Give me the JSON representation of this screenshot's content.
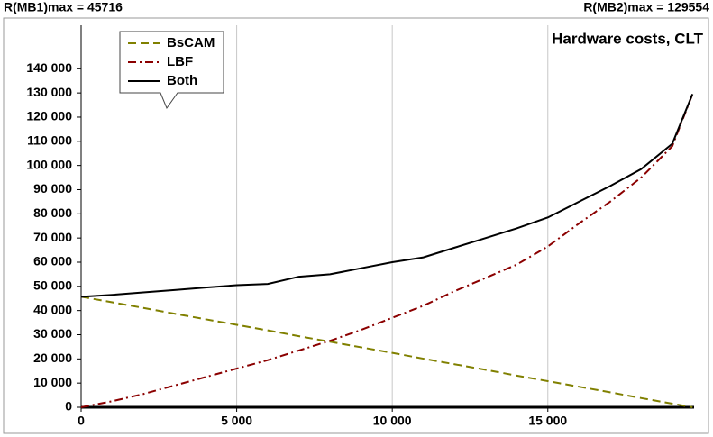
{
  "header": {
    "left": "R(MB1)max = 45716",
    "right": "R(MB2)max = 129554"
  },
  "chart_data": {
    "type": "line",
    "title": "Hardware costs, CLT",
    "x": [
      0,
      1000,
      2000,
      3000,
      4000,
      5000,
      6000,
      7000,
      8000,
      9000,
      10000,
      11000,
      12000,
      13000,
      14000,
      15000,
      16000,
      17000,
      18000,
      19000,
      19650
    ],
    "series": [
      {
        "name": "BsCAM",
        "color": "#808000",
        "style": "dashed",
        "values": [
          45716,
          43400,
          41100,
          38700,
          36400,
          34100,
          31800,
          29400,
          27100,
          24800,
          22500,
          20100,
          17800,
          15500,
          13100,
          10800,
          8500,
          6200,
          3800,
          1500,
          0
        ]
      },
      {
        "name": "LBF",
        "color": "#8b0000",
        "style": "dashdot",
        "values": [
          0,
          2500,
          5500,
          9000,
          12500,
          16000,
          19500,
          23500,
          27500,
          32000,
          37000,
          42000,
          48000,
          53500,
          59000,
          66500,
          76000,
          85000,
          95000,
          108000,
          129554
        ]
      },
      {
        "name": "Both",
        "color": "#000000",
        "style": "solid",
        "values": [
          45716,
          46500,
          47500,
          48500,
          49500,
          50500,
          51000,
          54000,
          55000,
          57500,
          60000,
          62000,
          66000,
          70000,
          74000,
          78500,
          85000,
          91500,
          98500,
          109000,
          129554
        ]
      }
    ],
    "xlim": [
      0,
      19700
    ],
    "ylim": [
      0,
      158000
    ],
    "xticks": [
      0,
      {
        "value": 5000,
        "label": "5 000"
      },
      {
        "value": 10000,
        "label": "10 000"
      },
      {
        "value": 15000,
        "label": "15 000"
      }
    ],
    "yticks": [
      0,
      {
        "value": 10000,
        "label": "10 000"
      },
      {
        "value": 20000,
        "label": "20 000"
      },
      {
        "value": 30000,
        "label": "30 000"
      },
      {
        "value": 40000,
        "label": "40 000"
      },
      {
        "value": 50000,
        "label": "50 000"
      },
      {
        "value": 60000,
        "label": "60 000"
      },
      {
        "value": 70000,
        "label": "70 000"
      },
      {
        "value": 80000,
        "label": "80 000"
      },
      {
        "value": 90000,
        "label": "90 000"
      },
      {
        "value": 100000,
        "label": "100 000"
      },
      {
        "value": 110000,
        "label": "110 000"
      },
      {
        "value": 120000,
        "label": "120 000"
      },
      {
        "value": 130000,
        "label": "130 000"
      },
      {
        "value": 140000,
        "label": "140 000"
      }
    ],
    "grid": "x",
    "legend": "top-left"
  }
}
